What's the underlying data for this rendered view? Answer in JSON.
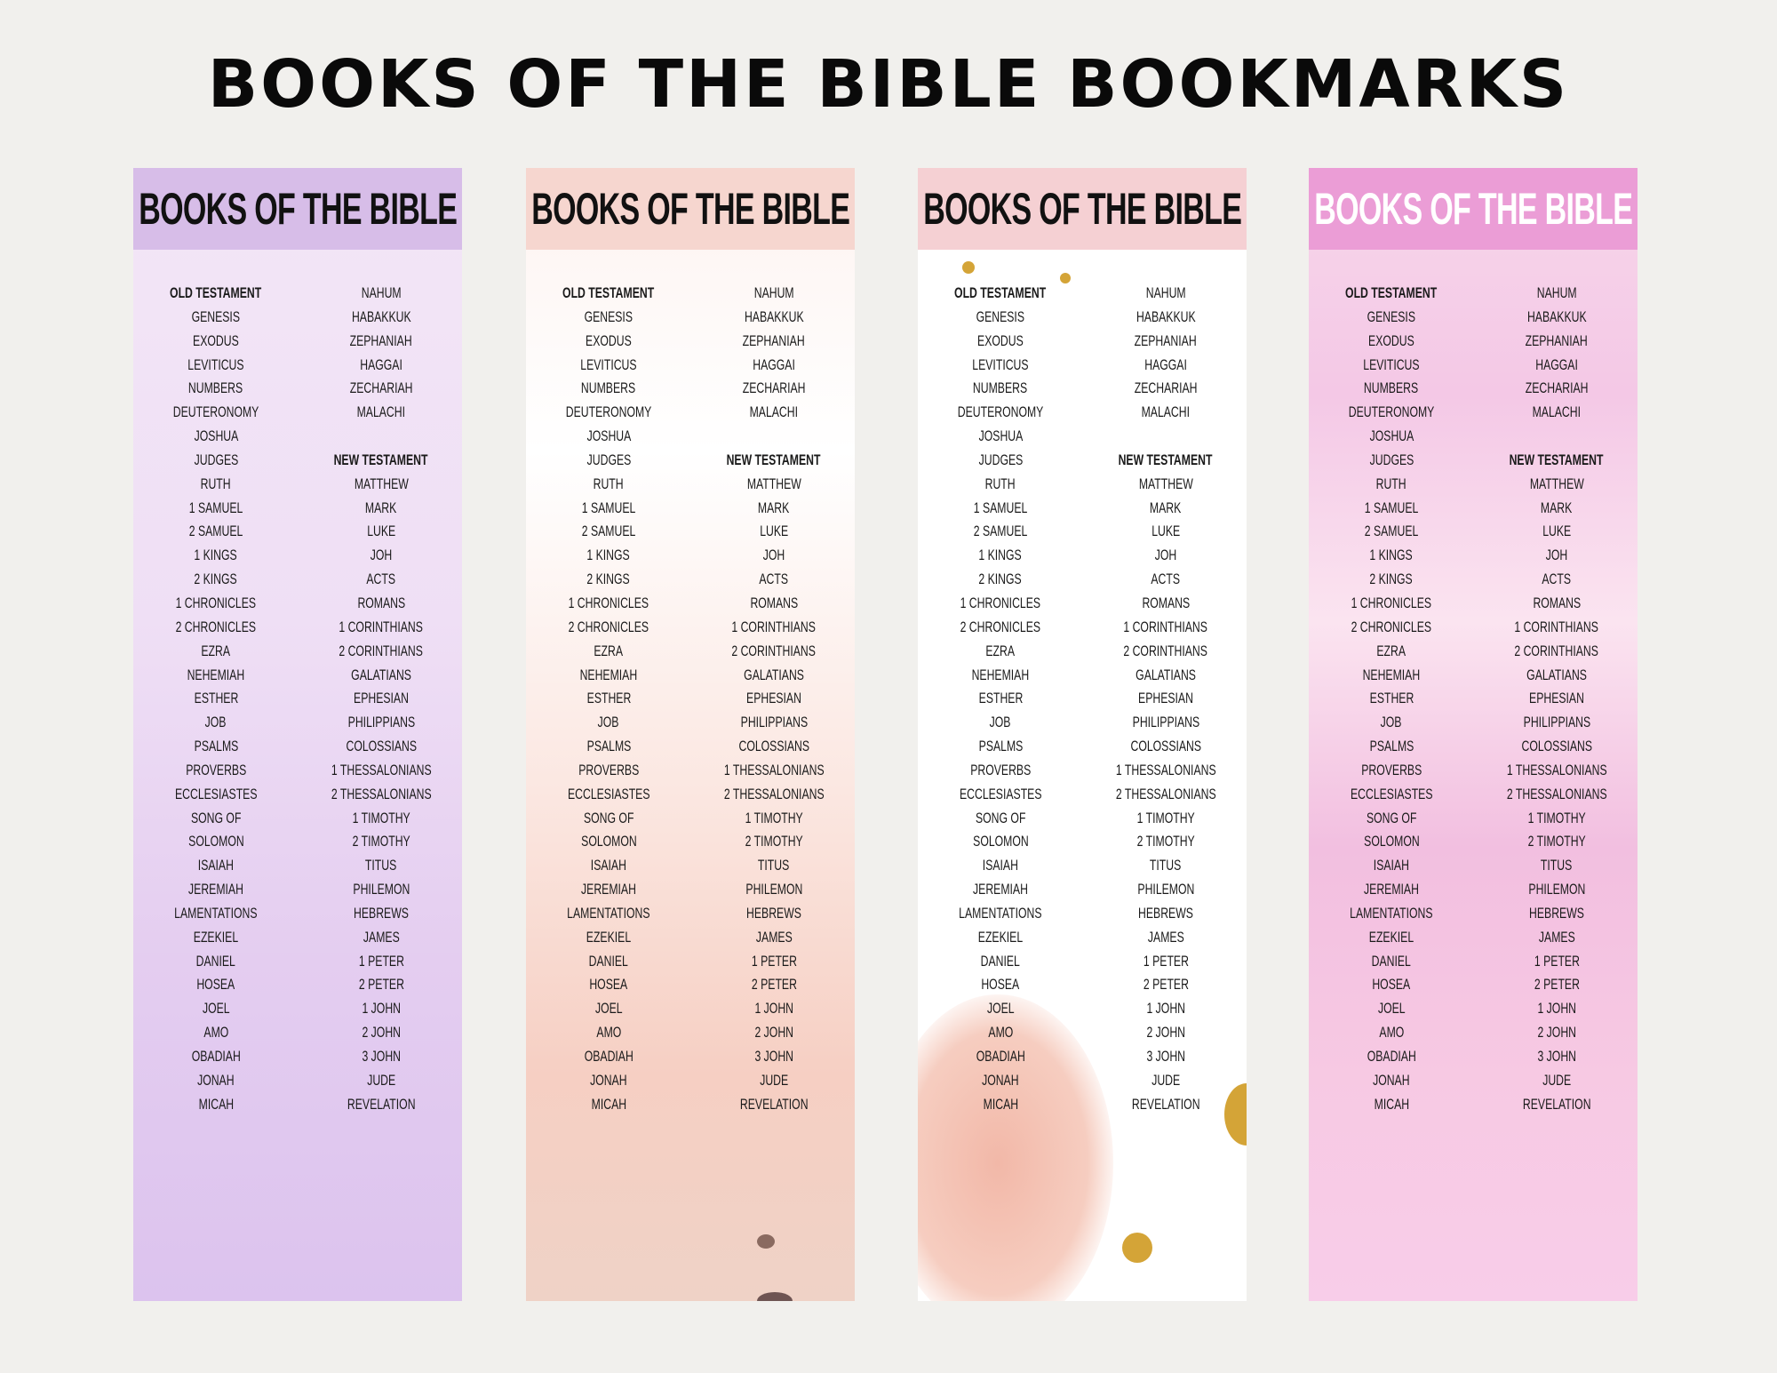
{
  "page_title": "BOOKS OF THE BIBLE BOOKMARKS",
  "bookmarks": [
    {
      "title": "BOOKS OF THE BIBLE",
      "header_color": "#d7bde8",
      "title_color": "#111111"
    },
    {
      "title": "BOOKS OF THE BIBLE",
      "header_color": "#f6d6cf",
      "title_color": "#111111"
    },
    {
      "title": "BOOKS OF THE BIBLE",
      "header_color": "#f5d0d3",
      "title_color": "#111111"
    },
    {
      "title": "BOOKS OF THE BIBLE",
      "header_color": "#eb9dd6",
      "title_color": "#ffffff"
    }
  ],
  "list": {
    "column1": [
      "OLD TESTAMENT",
      "GENESIS",
      "EXODUS",
      "LEVITICUS",
      "NUMBERS",
      "DEUTERONOMY",
      "JOSHUA",
      "JUDGES",
      "RUTH",
      "1 SAMUEL",
      "2 SAMUEL",
      "1 KINGS",
      "2 KINGS",
      "1 CHRONICLES",
      "2 CHRONICLES",
      "EZRA",
      "NEHEMIAH",
      "ESTHER",
      "JOB",
      "PSALMS",
      "PROVERBS",
      "ECCLESIASTES",
      "SONG OF",
      "SOLOMON",
      "ISAIAH",
      "JEREMIAH",
      "LAMENTATIONS",
      "EZEKIEL",
      "DANIEL",
      "HOSEA",
      "JOEL",
      "AMO",
      "OBADIAH",
      "JONAH",
      "MICAH"
    ],
    "column2": [
      "NAHUM",
      "HABAKKUK",
      "ZEPHANIAH",
      "HAGGAI",
      "ZECHARIAH",
      "MALACHI",
      "",
      "NEW TESTAMENT",
      "MATTHEW",
      "MARK",
      "LUKE",
      "JOH",
      "ACTS",
      "ROMANS",
      "1 CORINTHIANS",
      "2 CORINTHIANS",
      "GALATIANS",
      "EPHESIAN",
      "PHILIPPIANS",
      "COLOSSIANS",
      "1 THESSALONIANS",
      "2 THESSALONIANS",
      "1 TIMOTHY",
      "2 TIMOTHY",
      "TITUS",
      "PHILEMON",
      "HEBREWS",
      "JAMES",
      "1 PETER",
      "2 PETER",
      "1 JOHN",
      "2 JOHN",
      "3 JOHN",
      "JUDE",
      "REVELATION"
    ],
    "headings": [
      "OLD TESTAMENT",
      "NEW TESTAMENT"
    ]
  }
}
